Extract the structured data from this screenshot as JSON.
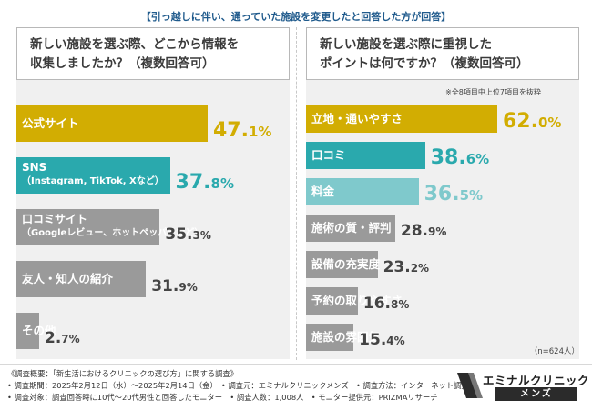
{
  "header": {
    "title": "【引っ越しに伴い、通っていた施設を変更したと回答した方が回答】"
  },
  "colors": {
    "gold": "#d2ad02",
    "teal": "#2aa9ad",
    "teal_light": "#7fc9cc",
    "gray": "#9a9a9a",
    "header_blue": "#1f5a8c"
  },
  "chart_data": [
    {
      "type": "bar",
      "orientation": "horizontal",
      "title": "新しい施設を選ぶ際、どこから情報を\n収集しましたか？（複数回答可）",
      "xlabel": "",
      "ylabel": "",
      "unit": "%",
      "categories": [
        "公式サイト",
        "SNS\n（Instagram, TikTok, Xなど）",
        "口コミサイト\n（Googleレビュー、ホットペッパーなど）",
        "友人・知人の紹介",
        "その他"
      ],
      "values": [
        47.1,
        37.8,
        35.3,
        31.9,
        2.7
      ],
      "value_labels": [
        {
          "int": "47.",
          "dec": "1%"
        },
        {
          "int": "37.",
          "dec": "8%"
        },
        {
          "int": "35.",
          "dec": "3%"
        },
        {
          "int": "31.",
          "dec": "9%"
        },
        {
          "int": "2.",
          "dec": "7%"
        }
      ],
      "bar_colors": [
        "gold",
        "teal",
        "gray",
        "gray",
        "gray"
      ]
    },
    {
      "type": "bar",
      "orientation": "horizontal",
      "title": "新しい施設を選ぶ際に重視した\nポイントは何ですか？（複数回答可）",
      "xlabel": "",
      "ylabel": "",
      "unit": "%",
      "note": "※全8項目中上位7項目を抜粋",
      "categories": [
        "立地・通いやすさ",
        "口コミ",
        "料金",
        "施術の質・評判",
        "設備の充実度",
        "予約の取りやすさ",
        "施設の雰囲気"
      ],
      "values": [
        62.0,
        38.6,
        36.5,
        28.9,
        23.2,
        16.8,
        15.4
      ],
      "value_labels": [
        {
          "int": "62.",
          "dec": "0%"
        },
        {
          "int": "38.",
          "dec": "6%"
        },
        {
          "int": "36.",
          "dec": "5%"
        },
        {
          "int": "28.",
          "dec": "9%"
        },
        {
          "int": "23.",
          "dec": "2%"
        },
        {
          "int": "16.",
          "dec": "8%"
        },
        {
          "int": "15.",
          "dec": "4%"
        }
      ],
      "bar_colors": [
        "gold",
        "teal",
        "teal_light",
        "gray",
        "gray",
        "gray",
        "gray"
      ],
      "sample": "（n=624人）"
    }
  ],
  "footer": {
    "lines": [
      "《調査概要：「新生活におけるクリニックの選び方」に関する調査》",
      "• 調査期間：2025年2月12日（水）〜2025年2月14日（金）　• 調査元：エミナルクリニックメンズ　• 調査方法：インターネット調査",
      "• 調査対象：調査回答時に10代〜20代男性と回答したモニター　• 調査人数：1,008人　• モニター提供元：PRIZMAリサーチ"
    ]
  },
  "logo": {
    "name": "エミナルクリニック",
    "sub": "メンズ"
  }
}
